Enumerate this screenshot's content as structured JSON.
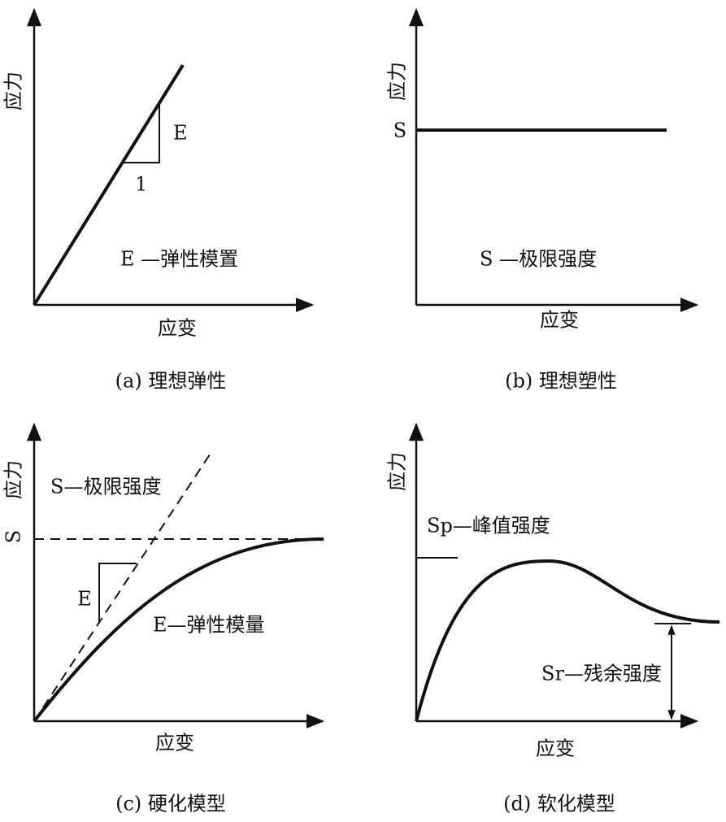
{
  "panels": [
    {
      "y_label": "应力",
      "x_label": "应变",
      "slope_label": "E",
      "run_label": "1",
      "legend": "E —弹性模置",
      "caption": "(a) 理想弹性"
    },
    {
      "y_label": "应力",
      "x_label": "应变",
      "s_label": "S",
      "legend": "S —极限强度",
      "caption": "(b) 理想塑性"
    },
    {
      "y_label": "应力",
      "x_label": "应变",
      "s_label": "S",
      "slope_label": "E",
      "legend_s": "S—极限强度",
      "legend_e": "E—弹性模量",
      "caption": "(c) 硬化模型"
    },
    {
      "y_label": "应力",
      "x_label": "应变",
      "legend_sp": "Sp—峰值强度",
      "legend_sr": "Sr—残余强度",
      "caption": "(d) 软化模型"
    }
  ]
}
